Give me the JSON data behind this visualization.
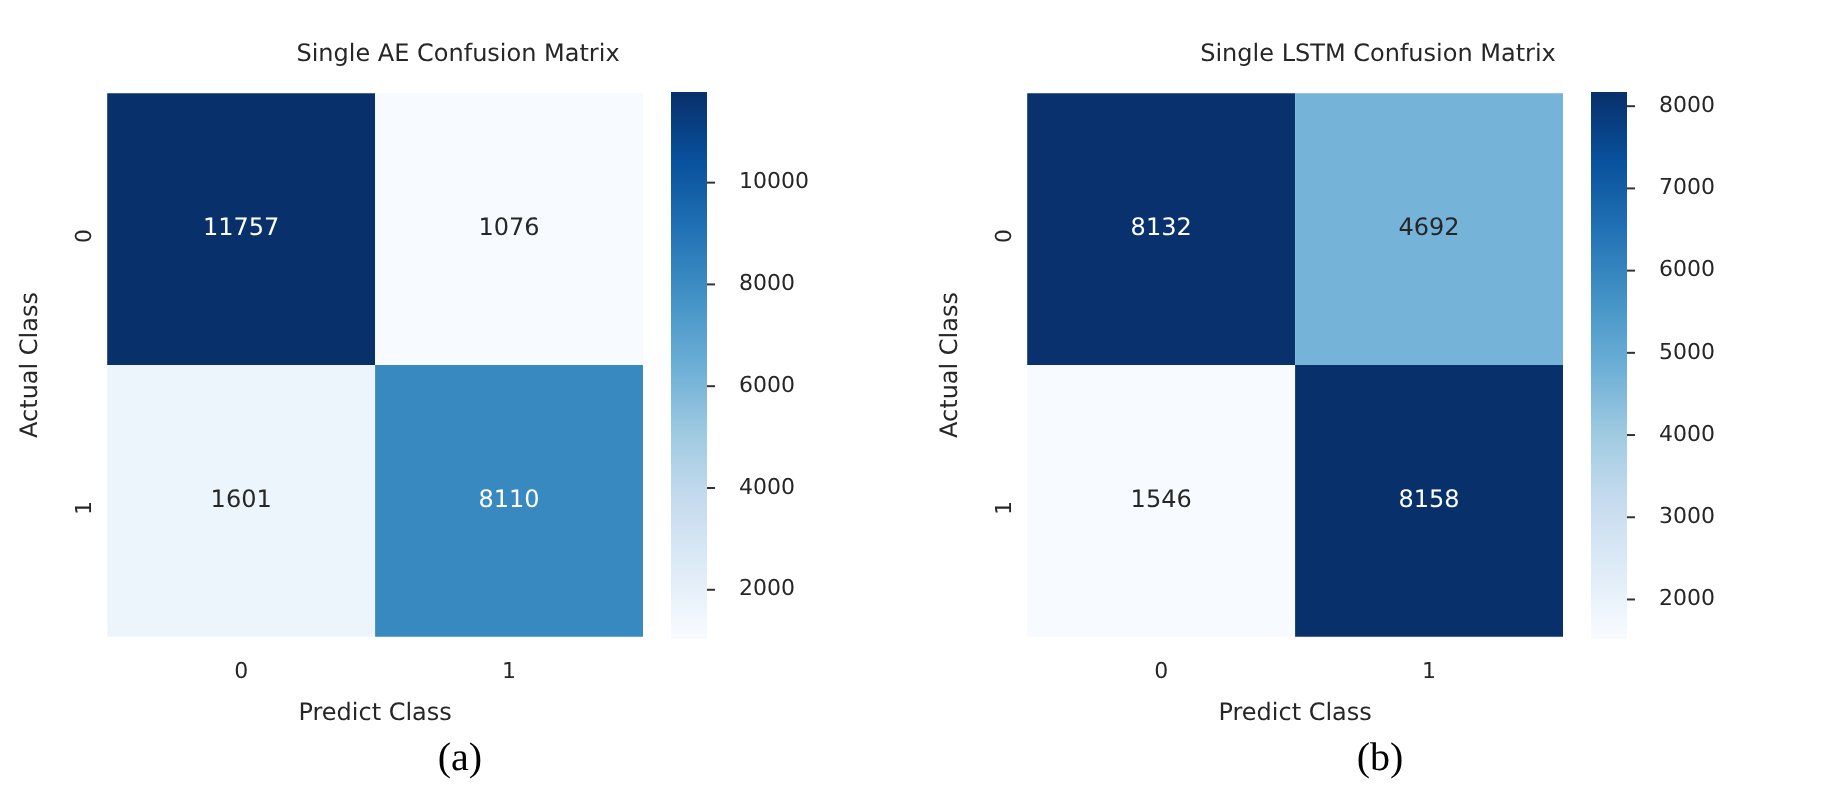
{
  "chart_data": [
    {
      "type": "heatmap",
      "title": "Single AE Confusion Matrix",
      "xlabel": "Predict Class",
      "ylabel": "Actual Class",
      "categories": [
        "0",
        "1"
      ],
      "y_categories": [
        "0",
        "1"
      ],
      "cells": [
        [
          11757,
          1076
        ],
        [
          1601,
          8110
        ]
      ],
      "clim": [
        1076,
        11757
      ],
      "cticks": [
        2000,
        4000,
        6000,
        8000,
        10000
      ],
      "data_labels": true,
      "annotations": [
        "(a)"
      ]
    },
    {
      "type": "heatmap",
      "title": "Single LSTM Confusion Matrix",
      "xlabel": "Predict Class",
      "ylabel": "Actual Class",
      "categories": [
        "0",
        "1"
      ],
      "y_categories": [
        "0",
        "1"
      ],
      "cells": [
        [
          8132,
          4692
        ],
        [
          1546,
          8158
        ]
      ],
      "clim": [
        1546,
        8158
      ],
      "cticks": [
        2000,
        3000,
        4000,
        5000,
        6000,
        7000,
        8000
      ],
      "data_labels": true,
      "annotations": [
        "(b)"
      ]
    }
  ]
}
